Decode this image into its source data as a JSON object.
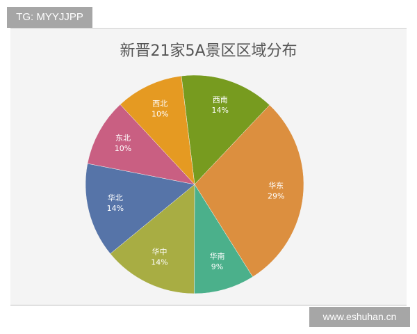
{
  "watermark_top": "TG: MYYJJPP",
  "watermark_bottom": "www.eshuhan.cn",
  "chart_data": {
    "type": "pie",
    "title": "新晋21家5A景区区域分布",
    "categories": [
      "西南",
      "华东",
      "华南",
      "华中",
      "华北",
      "东北",
      "西北"
    ],
    "values": [
      14,
      29,
      9,
      14,
      14,
      10,
      10
    ],
    "labels": [
      "14%",
      "29%",
      "9%",
      "14%",
      "14%",
      "10%",
      "10%"
    ],
    "colors": [
      "#779b1f",
      "#dc8f3f",
      "#4bb08b",
      "#a8ad43",
      "#5674a8",
      "#c95f82",
      "#e59a22"
    ],
    "start_angle_deg": -7,
    "direction": "clockwise"
  }
}
